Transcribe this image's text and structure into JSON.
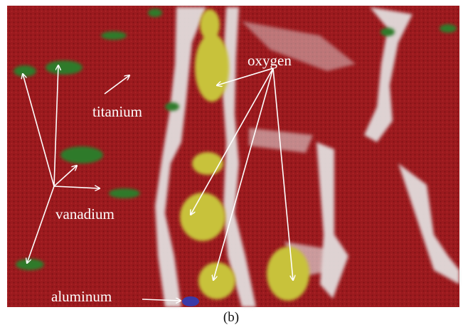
{
  "labels": {
    "titanium": "titanium",
    "oxygen": "oxygen",
    "vanadium": "vanadium",
    "aluminum": "aluminum"
  },
  "caption": "(b)"
}
